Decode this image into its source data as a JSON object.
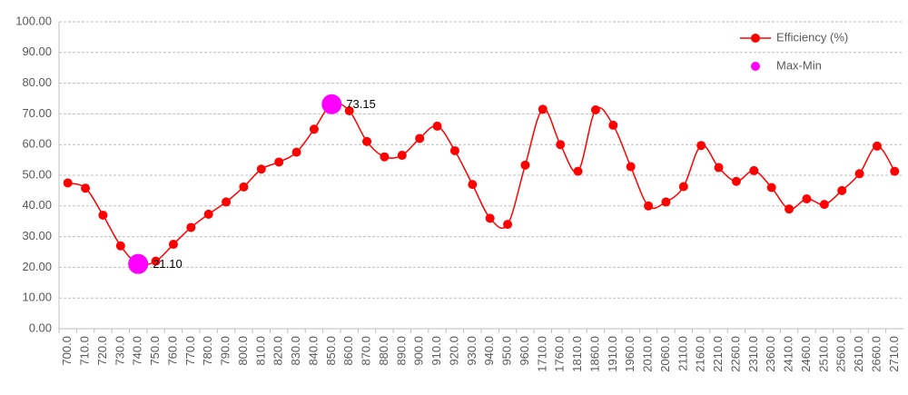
{
  "chart_data": {
    "type": "line",
    "categories": [
      "700.0",
      "710.0",
      "720.0",
      "730.0",
      "740.0",
      "750.0",
      "760.0",
      "770.0",
      "780.0",
      "790.0",
      "800.0",
      "810.0",
      "820.0",
      "830.0",
      "840.0",
      "850.0",
      "860.0",
      "870.0",
      "880.0",
      "890.0",
      "900.0",
      "910.0",
      "920.0",
      "930.0",
      "940.0",
      "950.0",
      "960.0",
      "1710.0",
      "1760.0",
      "1810.0",
      "1860.0",
      "1910.0",
      "1960.0",
      "2010.0",
      "2060.0",
      "2110.0",
      "2160.0",
      "2210.0",
      "2260.0",
      "2310.0",
      "2360.0",
      "2410.0",
      "2460.0",
      "2510.0",
      "2560.0",
      "2610.0",
      "2660.0",
      "2710.0"
    ],
    "series": [
      {
        "name": "Efficiency (%)",
        "color": "#ff0000",
        "values": [
          47.5,
          45.8,
          37,
          27,
          21.1,
          22,
          27.5,
          33,
          37.3,
          41.3,
          46.2,
          52,
          54.3,
          57.5,
          65,
          73.15,
          71,
          61,
          56,
          56.5,
          62,
          66,
          58,
          47,
          36,
          34,
          53.3,
          71.5,
          60,
          51.3,
          71.3,
          66.3,
          52.8,
          40,
          41.3,
          46.3,
          59.7,
          52.5,
          48,
          51.5,
          46,
          39,
          42.3,
          40.5,
          45,
          50.5,
          59.5,
          51.3
        ]
      },
      {
        "name": "Max-Min",
        "color": "#ff00ff",
        "values": [
          null,
          null,
          null,
          null,
          21.1,
          null,
          null,
          null,
          null,
          null,
          null,
          null,
          null,
          null,
          null,
          73.15,
          null,
          null,
          null,
          null,
          null,
          null,
          null,
          null,
          null,
          null,
          null,
          null,
          null,
          null,
          null,
          null,
          null,
          null,
          null,
          null,
          null,
          null,
          null,
          null,
          null,
          null,
          null,
          null,
          null,
          null,
          null,
          null
        ],
        "value_labels": [
          null,
          null,
          null,
          null,
          "21.10",
          null,
          null,
          null,
          null,
          null,
          null,
          null,
          null,
          null,
          null,
          "73.15",
          null,
          null,
          null,
          null,
          null,
          null,
          null,
          null,
          null,
          null,
          null,
          null,
          null,
          null,
          null,
          null,
          null,
          null,
          null,
          null,
          null,
          null,
          null,
          null,
          null,
          null,
          null,
          null,
          null,
          null,
          null,
          null
        ]
      }
    ],
    "ylim": [
      0,
      100
    ],
    "yticks": [
      {
        "value": 0,
        "label": "0.00"
      },
      {
        "value": 10,
        "label": "10.00"
      },
      {
        "value": 20,
        "label": "20.00"
      },
      {
        "value": 30,
        "label": "30.00"
      },
      {
        "value": 40,
        "label": "40.00"
      },
      {
        "value": 50,
        "label": "50.00"
      },
      {
        "value": 60,
        "label": "60.00"
      },
      {
        "value": 70,
        "label": "70.00"
      },
      {
        "value": 80,
        "label": "80.00"
      },
      {
        "value": 90,
        "label": "90.00"
      },
      {
        "value": 100,
        "label": "100.00"
      }
    ],
    "grid": true,
    "legend": "top-right"
  }
}
